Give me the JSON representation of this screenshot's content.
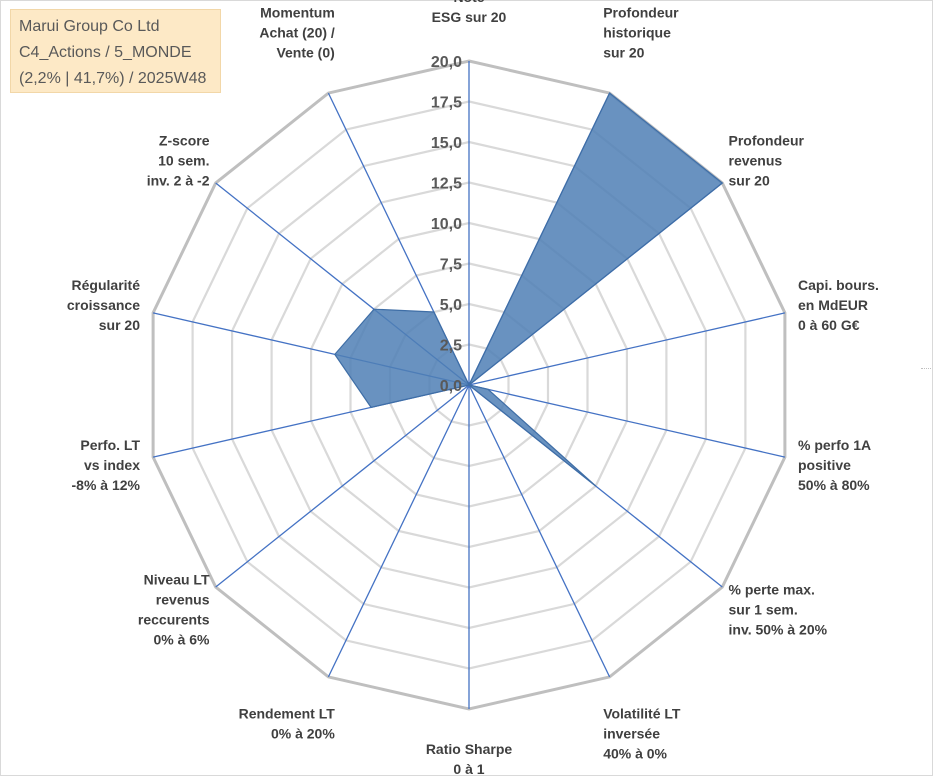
{
  "title_box": {
    "line1": "Marui Group Co Ltd",
    "line2": "C4_Actions / 5_MONDE",
    "line3": "(2,2% | 41,7%) / 2025W48"
  },
  "chart_data": {
    "type": "radar",
    "rmin": 0,
    "rmax": 20,
    "ticks": [
      "0,0",
      "2,5",
      "5,0",
      "7,5",
      "10,0",
      "12,5",
      "15,0",
      "17,5",
      "20,0"
    ],
    "tick_values": [
      0,
      2.5,
      5,
      7.5,
      10,
      12.5,
      15,
      17.5,
      20
    ],
    "grid": true,
    "series_color": "#4f7fb5",
    "categories": [
      [
        "Note",
        "ESG sur 20"
      ],
      [
        "Profondeur",
        "historique",
        "sur 20"
      ],
      [
        "Profondeur",
        "revenus",
        "sur 20"
      ],
      [
        "Capi. bours.",
        "en MdEUR",
        "0 à 60 G€"
      ],
      [
        "% perfo 1A",
        "positive",
        "50% à 80%"
      ],
      [
        "% perte max.",
        "sur 1 sem.",
        "inv. 50% à 20%"
      ],
      [
        "Volatilité LT",
        "inversée",
        "40% à 0%"
      ],
      [
        "Ratio Sharpe",
        "0 à 1"
      ],
      [
        "Rendement LT",
        "0% à 20%"
      ],
      [
        "Niveau LT",
        "revenus",
        "reccurents",
        "0% à 6%"
      ],
      [
        "Perfo. LT",
        "vs index",
        "-8% à 12%"
      ],
      [
        "Régularité",
        "croissance",
        "sur 20"
      ],
      [
        "Z-score",
        "10 sem.",
        "inv. 2 à -2"
      ],
      [
        "Momentum",
        "Achat (20) /",
        "Vente (0)"
      ]
    ],
    "series": [
      {
        "name": "Marui Group Co Ltd",
        "values": [
          0,
          20,
          20,
          0,
          1.2,
          10,
          0,
          0,
          0,
          0,
          6.2,
          8.5,
          7.5,
          5
        ]
      }
    ]
  }
}
